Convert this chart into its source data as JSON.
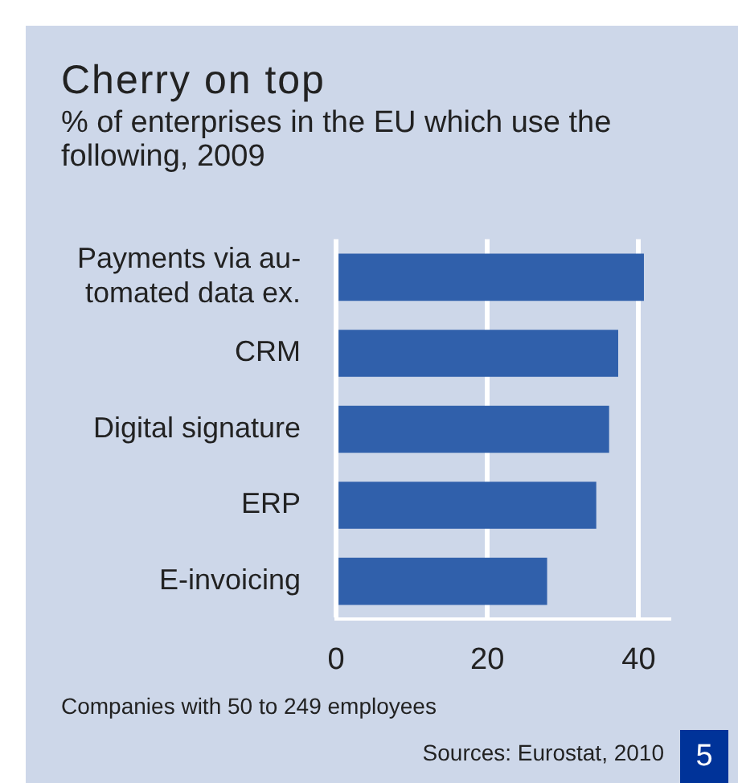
{
  "chart_data": {
    "type": "bar",
    "orientation": "horizontal",
    "title": "Cherry on top",
    "subtitle": "% of enterprises in the EU which use the following, 2009",
    "categories": [
      "Payments via au-\ntomated data ex.",
      "CRM",
      "Digital signature",
      "ERP",
      "E-invoicing"
    ],
    "values": [
      40.7,
      37.3,
      36.1,
      34.4,
      27.9
    ],
    "color": "#3060ab",
    "xlim": [
      0,
      44
    ],
    "xticks": [
      0,
      20,
      40
    ],
    "grid": "x",
    "annotations": [
      "Companies with 50 to 249 employees",
      "Sources: Eurostat, 2010",
      "5"
    ]
  }
}
